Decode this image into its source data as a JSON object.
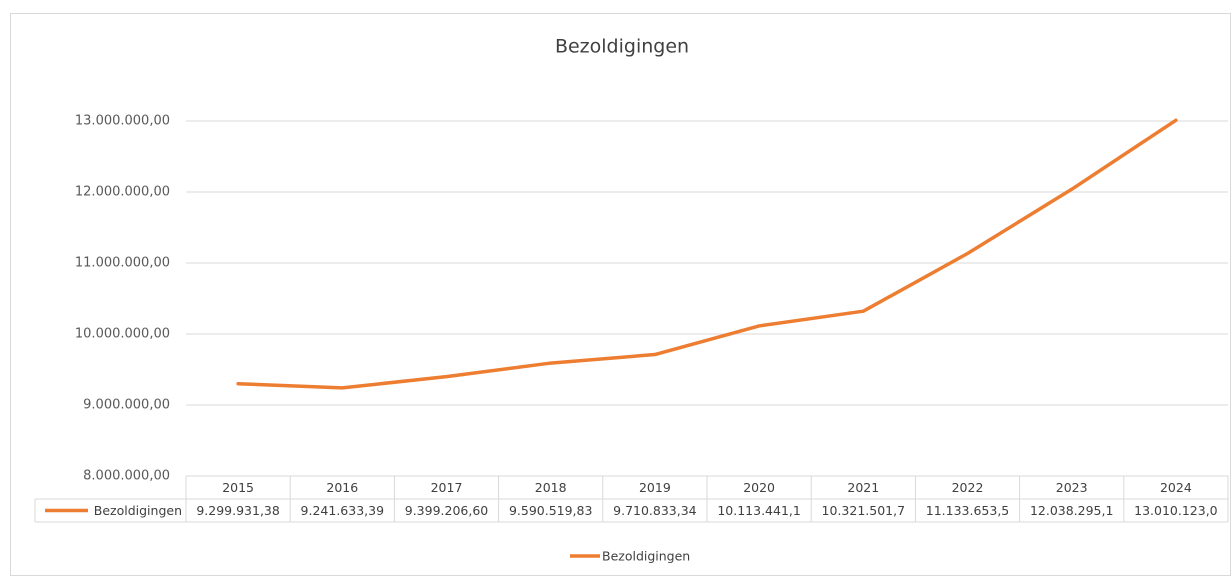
{
  "chart_data": {
    "type": "line",
    "title": "Bezoldigingen",
    "categories": [
      "2015",
      "2016",
      "2017",
      "2018",
      "2019",
      "2020",
      "2021",
      "2022",
      "2023",
      "2024"
    ],
    "series": [
      {
        "name": "Bezoldigingen",
        "color": "#ed7d31",
        "values": [
          9299931.38,
          9241633.39,
          9399206.6,
          9590519.83,
          9710833.34,
          10113441.1,
          10321501.7,
          11133653.5,
          12038295.1,
          13010123.0
        ],
        "value_labels": [
          "9.299.931,38",
          "9.241.633,39",
          "9.399.206,60",
          "9.590.519,83",
          "9.710.833,34",
          "10.113.441,1",
          "10.321.501,7",
          "11.133.653,5",
          "12.038.295,1",
          "13.010.123,0"
        ]
      }
    ],
    "ylim": [
      8000000,
      13000000
    ],
    "yticks": [
      {
        "value": 8000000,
        "label": "8.000.000,00"
      },
      {
        "value": 9000000,
        "label": "9.000.000,00"
      },
      {
        "value": 10000000,
        "label": "10.000.000,00"
      },
      {
        "value": 11000000,
        "label": "11.000.000,00"
      },
      {
        "value": 12000000,
        "label": "12.000.000,00"
      },
      {
        "value": 13000000,
        "label": "13.000.000,00"
      }
    ],
    "grid": true,
    "legend": "bottom"
  }
}
